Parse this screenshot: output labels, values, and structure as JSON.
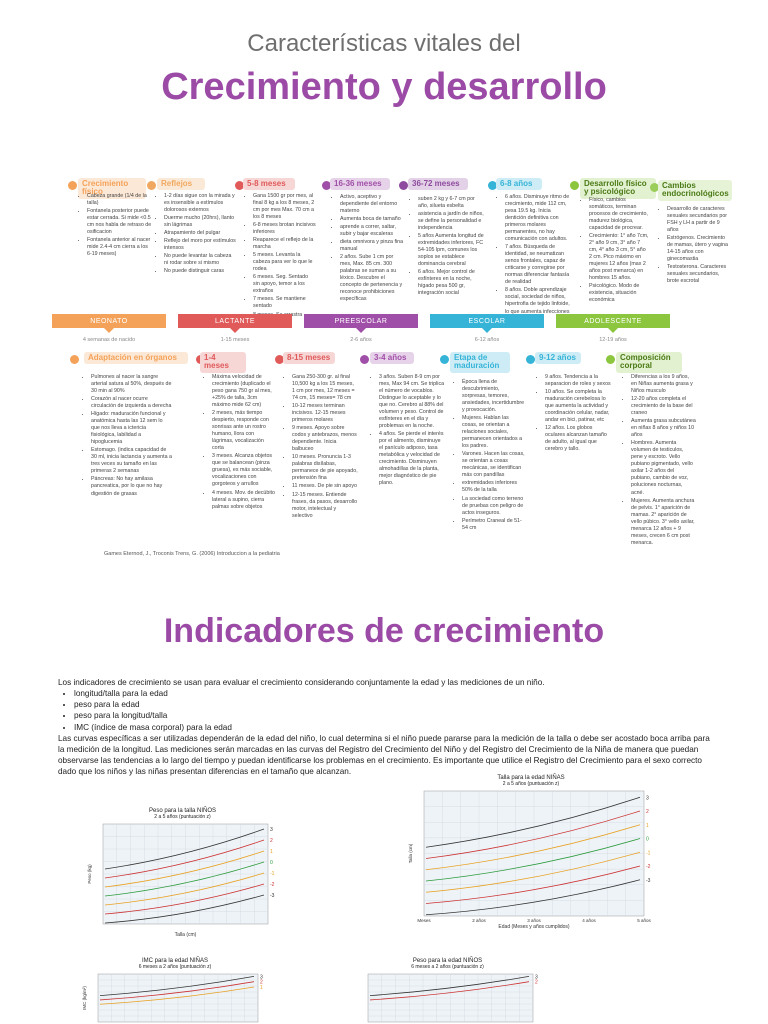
{
  "header": {
    "subtitle": "Características vitales del",
    "title": "Crecimiento y desarrollo"
  },
  "top_row": [
    {
      "heading": "Crecimiento físico",
      "color": "#f4a259",
      "items": [
        "Cabeza grande (1/4 de la talla)",
        "Fontanela posterior puede estar cerrada. Si mide <0.5 cm nos habla de retraso de osificacion",
        "Fontanela anterior al nacer mide 2.4-4 cm cierra a los 6-19 meses)"
      ]
    },
    {
      "heading": "Reflejos",
      "color": "#f0a860",
      "items": [
        "1-2 días sigue con la mirada y es insensible a estímulos dolorosos externos",
        "Duerme mucho (20hrs), llanto sin lágrimas",
        "Atrapamiento del pulgar",
        "Reflejo del moro por estímulos intensos",
        "No puede levantar la cabeza ni rodar sobre si mismo",
        "No puede distinguir caras"
      ]
    },
    {
      "heading": "5-8 meses",
      "color": "#e05a5a",
      "items": [
        "Gana 1500 gr por mes, al final 8 kg a los 8 meses, 2 cm por mes Max. 70 cm a los 8 meses",
        "6-8 meses brotan incisivos inferiores",
        "Reaparece el reflejo de la marcha",
        "5 meses. Levanta la cabeza para ver lo que le rodea",
        "6 meses. Seg. Sentado sin apoyo, temor a los extraños",
        "7 meses. Se mantiene sentado",
        "8 meses. Se arrastra"
      ]
    },
    {
      "heading": "16-36 meses",
      "color": "#a04fa8",
      "items": [
        "Activo, aceptivo y dependiente del entorno materno",
        "Aumenta boca de tamaño",
        "aprende a correr, saltar, subir y bajar escaleras",
        "dieta omnivora y pinza fina manual",
        "2 años. Sube 1 cm por mes, Max. 85 cm. 300 palabras se suman a su léxico. Descubre el concepto de pertenencia y reconoce prohibiciones específicas"
      ]
    },
    {
      "heading": "36-72 meses",
      "color": "#8e4a9e",
      "items": [
        "suben 2 kg y 6-7 cm por año, silueta esbelta",
        "asistencia a jardín de niños, se define la personalidad e independencia",
        "5 años Aumenta longitud de extremidades inferiores, FC 54-105 lpm, comunes los soplos se establece dominancia cerebral",
        "6 años. Mejor control de esfínteres en la noche, hígado pesa 500 gr, integración social"
      ]
    },
    {
      "heading": "6-8 años",
      "color": "#36b4d8",
      "items": [
        "6 años. Disminuye ritmo de crecimiento, mide 112 cm, pesa 19.5 kg. Inicia dentición definitiva con primeros molares permanentes, no hay comunicación con adultos.",
        "7 años. Búsqueda de identidad, se neumatizan senos frontales, capaz de criticarse y corregirse por normas diferenciar fantasía de realidad",
        "8 años. Doble aprendizaje social, sociedad de niños, hipertrofia de tejido linfoide, lo que aumenta infecciones respiratorias."
      ]
    },
    {
      "heading": "Desarrollo físico y psicológico",
      "color": "#8cc63f",
      "items": [
        "Físico, cambios somáticos, terminan procesos de crecimiento, madurez biológica, capacidad de procrear.",
        "Crecimiento: 1° año 7cm, 2° año 9 cm, 3° año 7 cm, 4° año 3 cm, 5° año 2 cm. Pico máximo en mujeres 12 años (max 2 años post menarca) en hombres 15 años.",
        "Psicológico. Modo de existencia, situación económica"
      ]
    },
    {
      "heading": "Cambios endocrinológicos",
      "color": "#9acd5a",
      "items": [
        "Desarrollo de caracteres sexuales secundarios por FSH y LH a partir de 9 años",
        "Estrógenos. Crecimiento de mamas, útero y vagina 14-15 años con ginecomastia",
        "Testosterona. Caracteres sexuales secundarios, brote escrotal"
      ]
    }
  ],
  "stages": [
    {
      "name": "NEONATO",
      "age": "4 semanas de nacido",
      "color": "#f4a259"
    },
    {
      "name": "LACTANTE",
      "age": "1-15 meses",
      "color": "#e05a5a"
    },
    {
      "name": "PREESCOLAR",
      "age": "2-6 años",
      "color": "#a04fa8"
    },
    {
      "name": "ESCOLAR",
      "age": "6-12 años",
      "color": "#36b4d8"
    },
    {
      "name": "ADOLESCENTE",
      "age": "12-19 años",
      "color": "#8cc63f"
    }
  ],
  "bottom_row": [
    {
      "heading": "Adaptación en órganos",
      "color": "#f4a259",
      "items": [
        "Pulmones al nacer la sangre arterial satura al 50%, después de 30 min al 90%",
        "Corazón al nacer ocurre circulación de izquierda a derecha",
        "Hígado: maduración funcional y anatómica hasta las 12 sem lo que nos lleva a ictericia fisiológica, labilidad a hipoglucemia",
        "Estomago. (indica capacidad de 30 ml, inicia lactancia y aumenta a tres veces su tamaño en las primeras 2 semanas",
        "Páncreas: No hay amilasa pancreatica, por lo que no hay digestión de grasas"
      ]
    },
    {
      "heading": "1-4 meses",
      "color": "#e05a5a",
      "items": [
        "Máxima velocidad de crecimiento (duplicado el peso gana 750 gr al mes, +25% de talla, 3cm máximo mide 62 cm)",
        "2 meses, más tiempo despierto, responde con sonrisas ante un rostro humano, llora con lágrimas, vocalización corta",
        "3 meses. Alcanza objetos que se balancean (pinza gruesa), es más sociable, vocalizaciones con gorgoteos y arrullos",
        "4 meses. Mov. de decúbito lateral a supino, cierra palmas sobre objetos"
      ]
    },
    {
      "heading": "8-15 meses",
      "color": "#e05a5a",
      "items": [
        "Gana 250-300 gr. al final 10,500 kg a los 15 meses, 1 cm por mes, 12 meses = 74 cm, 15 meses= 78 cm",
        "10-12 meses terminan incisivos. 12-15 meses primeros molares",
        "9 meses. Apoyo sobre codos y antebrazos, menos dependiente. Inicia balbuceo",
        "10 meses. Pronuncia 1-3 palabras disílabas, permanece de pie apoyado, pretensión fina",
        "11 meses. De pie sin apoyo",
        "12-15 meses. Entiende frases, da pasos, desarrollo motor, intelectual y selectivo"
      ]
    },
    {
      "heading": "3-4 años",
      "color": "#a04fa8",
      "items": [
        "3 años. Suben 8-9 cm por mes, Max 94 cm. Se triplica el número de vocablos. Distingue lo aceptable y lo que no. Cerebro al 88% del volumen y peso. Control de esfínteres en el día y problemas en la noche.",
        "4 años. Se pierde el interés por el alimento, disminuye el panículo adiposo, tasa metabólica y velocidad de crecimiento. Disminuyen almohadillas de la planta, mejor diagnóstico de pie plano."
      ]
    },
    {
      "heading": "Etapa de maduración",
      "color": "#36b4d8",
      "items": [
        "Época llena de descubrimiento, sorpresas, temores, ansiedades, incertidumbre y provocación.",
        "Mujeres. Hablan las cosas, se orientan a relaciones sociales, permanecen orientados a los padres.",
        "Varones. Hacen las cosas, se orientan a cosas mecánicas, se identifican más con pandillas",
        "extremidades inferiores 50% de la talla",
        "La sociedad como terreno de pruebas con peligro de actos inseguros.",
        "Perímetro Craneal de 51-54 cm"
      ]
    },
    {
      "heading": "9-12 años",
      "color": "#36b4d8",
      "items": [
        "9 años. Tendencia a la separacion de roles y sexos",
        "10 años. Se completa la maduración cerebelosa lo que aumenta la actividad y coordinación celular, nadar, andar en bici, patinar, etc",
        "12 años. Los globos oculares alcanzan tamaño de adulto, al igual que cerebro y tallo."
      ]
    },
    {
      "heading": "Composición corporal",
      "color": "#8cc63f",
      "items": [
        "Diferencias a los 9 años, en Niñas aumenta grasa y Niños musculo",
        "12-20 años completa el crecimiento de la base del craneo",
        "Aumenta grasa subcutánea en niñas 8 años y niños 10 años",
        "Hombres. Aumenta volumen de testiculos, pene y escroto. Vello pubiano pigmentado, vello axilar 1-2 años del pubiano, cambio de voz, poluciones nocturnas, acné.",
        "Mujeres. Aumenta anchura de pelvis. 1° aparición de mamas. 2° aparición de vello púbico. 3° vello axilar, menarca 12 años + 9 meses, crecen 6 cm post menarca."
      ]
    }
  ],
  "citation": "Games Eternod, J., Troconis Trens, G. (2006) Introduccion a la pediatria",
  "section2": {
    "title": "Indicadores de crecimiento",
    "intro": "Los indicadores de crecimiento se usan para evaluar el crecimiento considerando conjuntamente la edad y las mediciones de un niño.",
    "list": [
      "longitud/talla para la edad",
      "peso para la edad",
      "peso para la longitud/talla",
      "IMC (índice de masa corporal) para la edad"
    ],
    "paragraph": "Las curvas específicas a ser utilizadas dependerán de la edad del niño, lo cual determina si el niño puede pararse para la medición de la talla o debe ser acostado boca arriba para la medición de la longitud. Las mediciones serán marcadas en las curvas del Registro del Crecimiento del Niño y del Registro del Crecimiento de la Niña de manera que puedan observarse las tendencias a lo largo del tiempo y puedan identificarse los problemas en el crecimiento. Es importante que utilice el Registro del Crecimiento para el sexo correcto dado que los niños y las niñas presentan diferencias en el tamaño que alcanzan."
  },
  "charts": [
    {
      "title": "Peso para la talla NIÑOS",
      "subtitle": "2 a 5 años (puntuación z)",
      "xlabel": "Talla (cm)",
      "ylabel": "Peso (kg)",
      "ylabels": [
        "3",
        "2",
        "1",
        "0",
        "-1",
        "-2",
        "-3"
      ]
    },
    {
      "title": "Talla para la edad NIÑAS",
      "subtitle": "2 a 5 años (puntuación z)",
      "xlabel": "Edad (Meses y años cumplidos)",
      "ylabel": "Talla (cm)",
      "ylabels": [
        "3",
        "2",
        "1",
        "0",
        "-1",
        "-2",
        "-3"
      ],
      "xticks": [
        "Meses",
        "2 años",
        "3 años",
        "4 años",
        "5 años"
      ]
    },
    {
      "title": "IMC para la edad NIÑAS",
      "subtitle": "6 meses a 2 años (puntuación z)",
      "xlabel": "",
      "ylabel": "IMC (kg/m²)",
      "ylabels": [
        "3",
        "2",
        "1"
      ]
    },
    {
      "title": "Peso para la edad NIÑOS",
      "subtitle": "6 meses a 2 años (puntuación z)",
      "xlabel": "",
      "ylabel": "",
      "ylabels": [
        "3",
        "2"
      ]
    }
  ]
}
